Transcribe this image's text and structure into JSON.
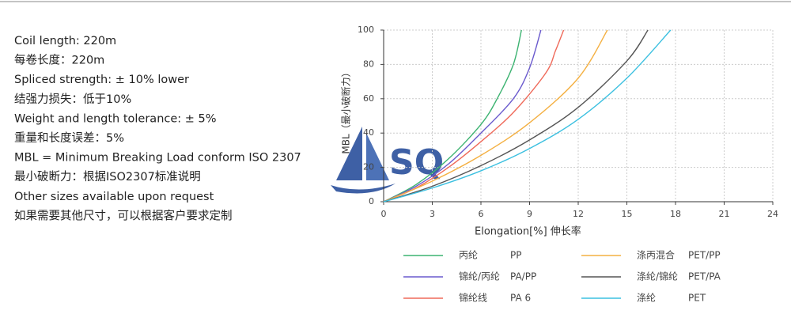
{
  "notes": [
    "Coil length: 220m",
    "每卷长度：220m",
    "Spliced strength: ± 10% lower",
    "结强力损失：低于10%",
    "Weight and length tolerance: ± 5%",
    "重量和长度误差：5%",
    "MBL = Minimum Breaking Load conform ISO 2307",
    "最小破断力：根据ISO2307标准说明",
    "Other sizes available upon request",
    "如果需要其他尺寸，可以根据客户要求定制"
  ],
  "logo": "SQ",
  "chart_data": {
    "type": "line",
    "x_label": "Elongation[%]  伸长率",
    "y_label": "MBL（最小破断力）",
    "xlim": [
      0,
      24
    ],
    "xticks": [
      0,
      3,
      6,
      9,
      12,
      15,
      18,
      21,
      24
    ],
    "ylim": [
      0,
      100
    ],
    "yticks": [
      0,
      20,
      40,
      60,
      80,
      100
    ],
    "grid": true,
    "series": [
      {
        "name": "PP",
        "label_cn": "丙纶",
        "color": "#3cb371",
        "x": [
          0,
          2,
          4,
          6,
          7,
          8,
          8.5
        ],
        "values": [
          0,
          10,
          25,
          45,
          60,
          80,
          100
        ]
      },
      {
        "name": "PA/PP",
        "label_cn": "锦纶/丙纶",
        "color": "#6a5acd",
        "x": [
          0,
          2,
          4,
          6,
          8,
          9,
          9.7
        ],
        "values": [
          0,
          9,
          22,
          40,
          60,
          78,
          100
        ]
      },
      {
        "name": "PA 6",
        "label_cn": "锦纶线",
        "color": "#ef6a5a",
        "x": [
          0,
          2,
          4,
          6,
          8,
          10,
          10.6,
          11.1
        ],
        "values": [
          0,
          8,
          20,
          35,
          52,
          75,
          88,
          100
        ]
      },
      {
        "name": "PET/PP",
        "label_cn": "涤丙混合",
        "color": "#f4b042",
        "x": [
          0,
          3,
          6,
          9,
          12,
          13.8
        ],
        "values": [
          0,
          12,
          27,
          46,
          72,
          100
        ]
      },
      {
        "name": "PET/PA",
        "label_cn": "涤纶/锦纶",
        "color": "#555555",
        "x": [
          0,
          3,
          6,
          9,
          12,
          15,
          16.3
        ],
        "values": [
          0,
          9,
          21,
          36,
          55,
          82,
          100
        ]
      },
      {
        "name": "PET",
        "label_cn": "涤纶",
        "color": "#3cc0e0",
        "x": [
          0,
          3,
          6,
          9,
          12,
          15,
          17.7
        ],
        "values": [
          0,
          8,
          18,
          31,
          48,
          72,
          100
        ]
      }
    ]
  }
}
